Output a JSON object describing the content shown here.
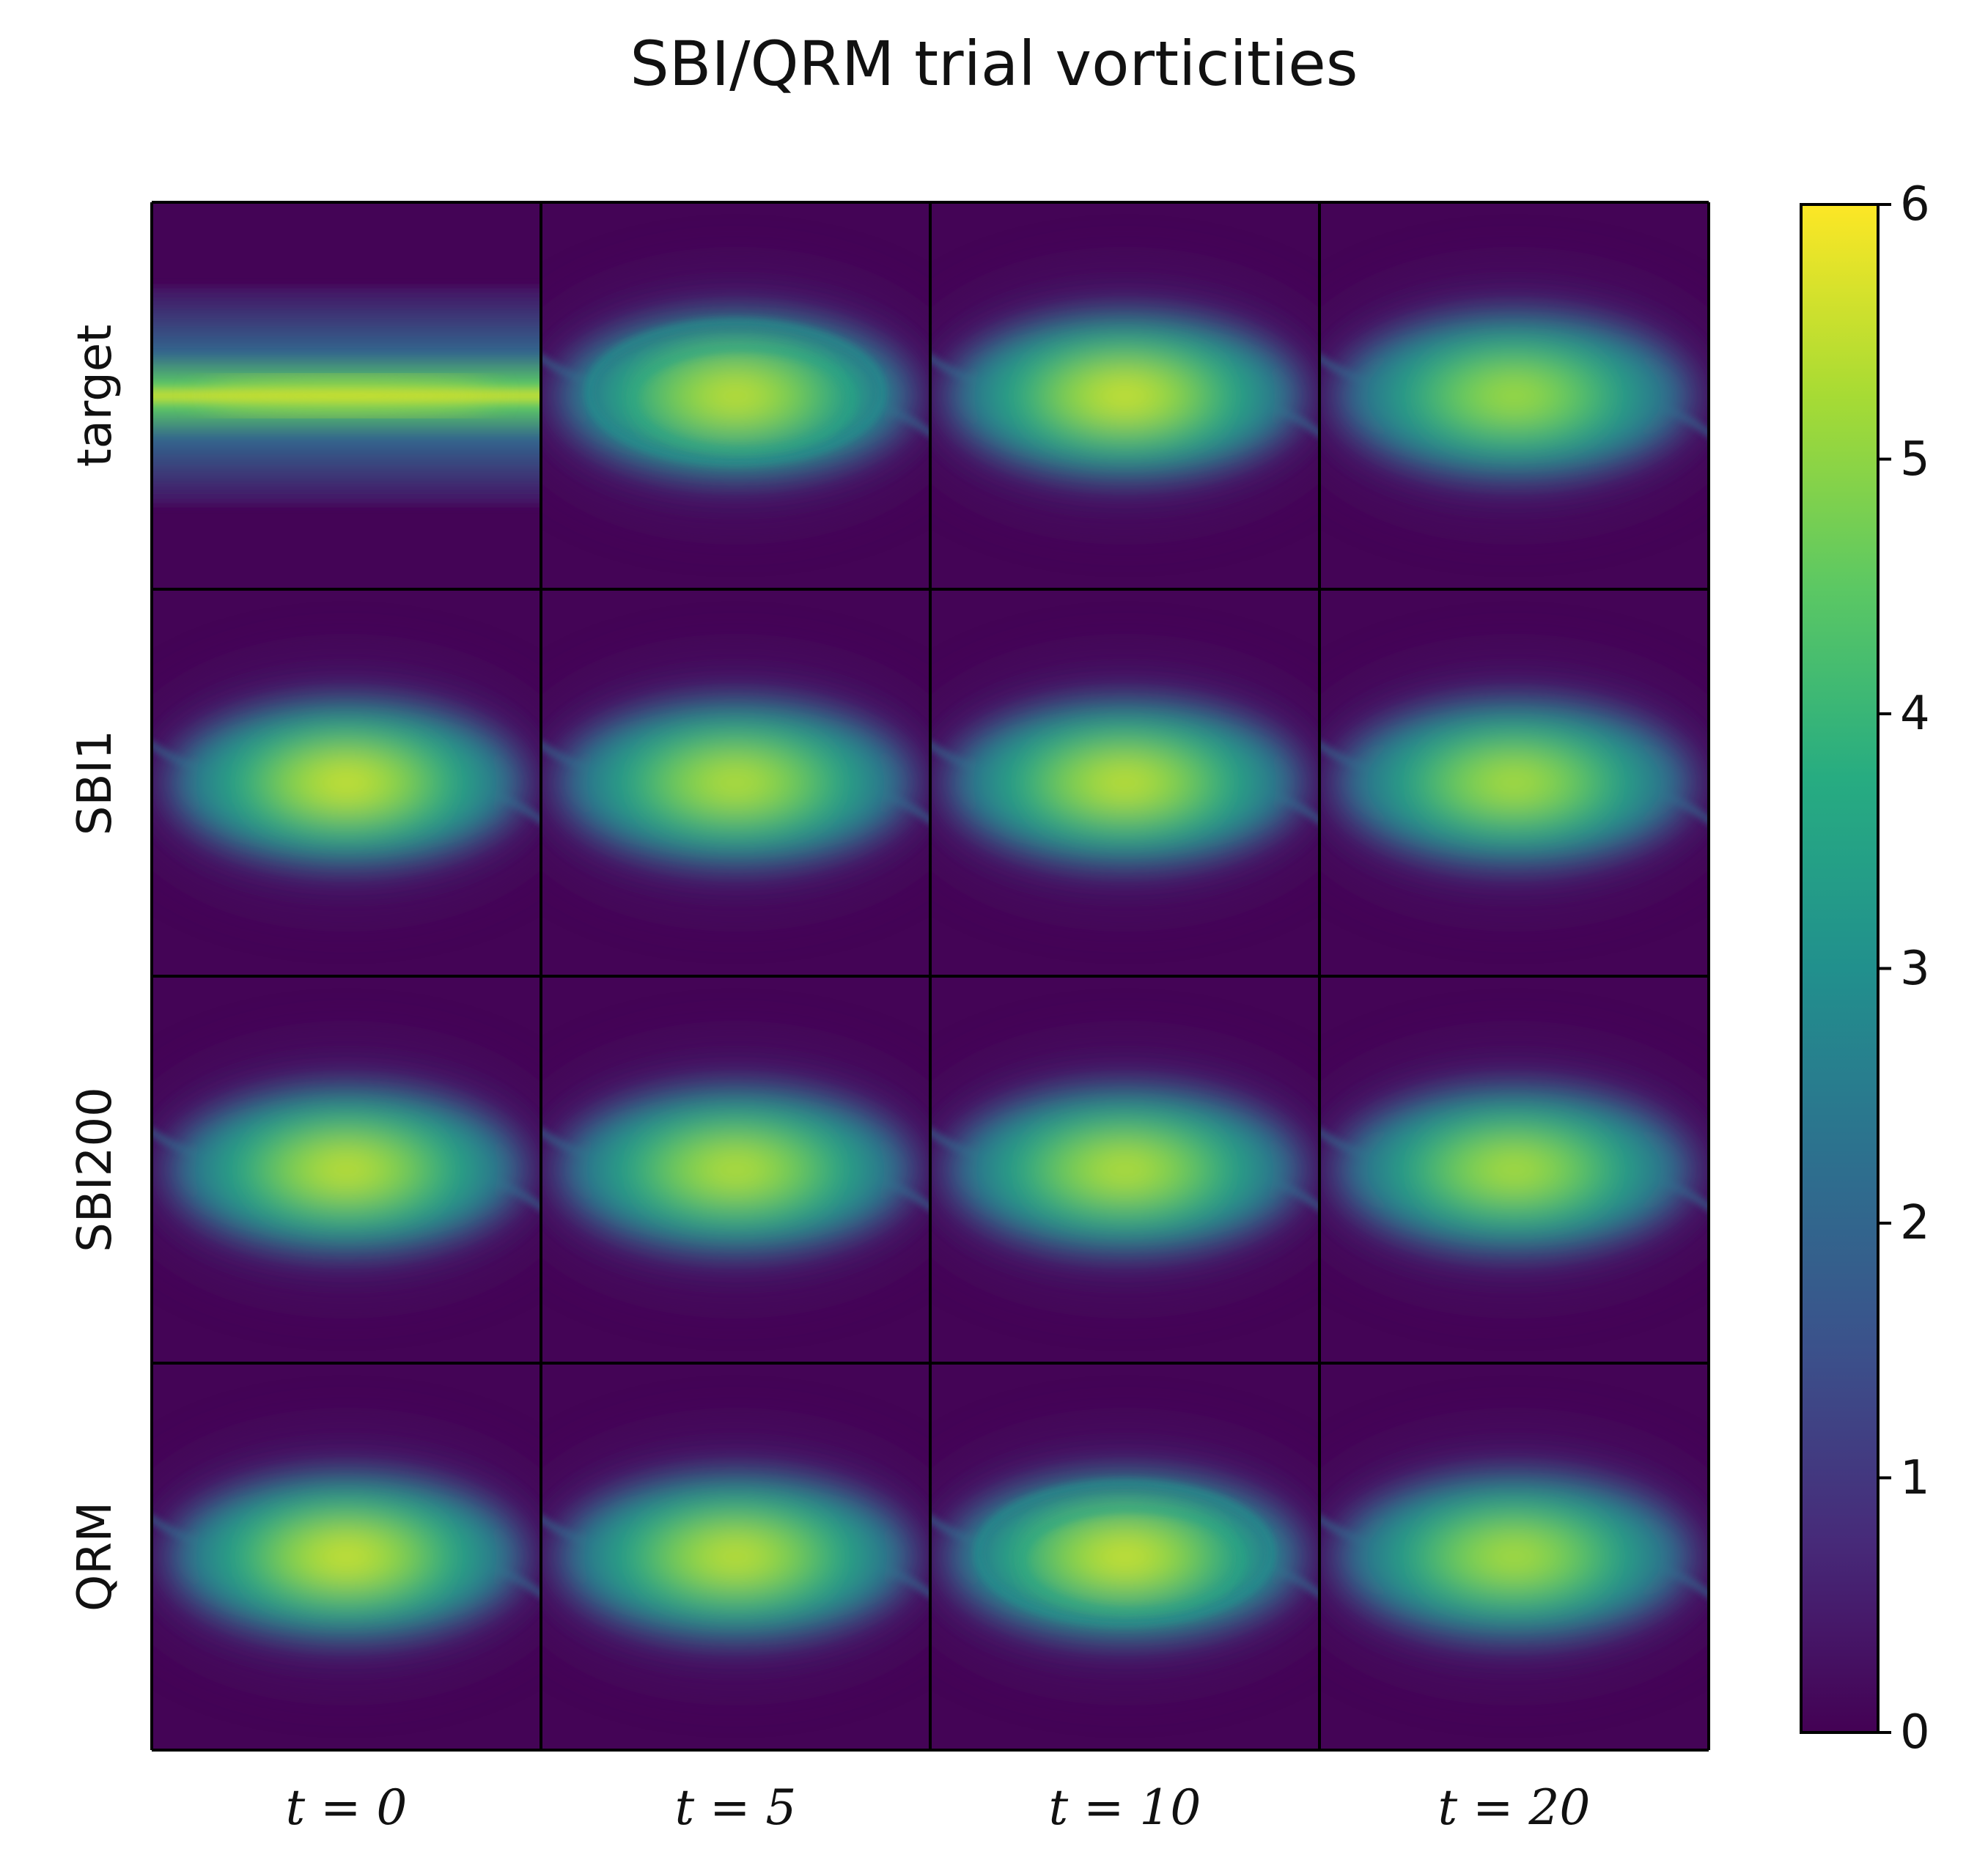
{
  "chart_data": {
    "type": "heatmap",
    "title": "SBI/QRM trial vorticities",
    "row_labels": [
      "target",
      "SBI1",
      "SBI200",
      "QRM"
    ],
    "col_labels": [
      "t = 0",
      "t = 5",
      "t = 10",
      "t = 20"
    ],
    "colormap": "viridis",
    "colorbar": {
      "range": [
        0,
        6
      ],
      "ticks": [
        "0",
        "1",
        "2",
        "3",
        "4",
        "5",
        "6"
      ]
    },
    "panels": [
      [
        {
          "kind": "band",
          "peak": 5.6
        },
        {
          "kind": "spiral",
          "peak": 5.7
        },
        {
          "kind": "vortex",
          "peak": 5.8
        },
        {
          "kind": "vortex",
          "peak": 5.4
        }
      ],
      [
        {
          "kind": "vortex",
          "peak": 5.8
        },
        {
          "kind": "vortex",
          "peak": 5.6
        },
        {
          "kind": "vortex",
          "peak": 5.7
        },
        {
          "kind": "vortex",
          "peak": 5.5
        }
      ],
      [
        {
          "kind": "vortex",
          "peak": 5.7
        },
        {
          "kind": "vortex",
          "peak": 5.6
        },
        {
          "kind": "vortex",
          "peak": 5.6
        },
        {
          "kind": "vortex",
          "peak": 5.5
        }
      ],
      [
        {
          "kind": "vortex",
          "peak": 5.8
        },
        {
          "kind": "vortex",
          "peak": 5.7
        },
        {
          "kind": "spiral",
          "peak": 5.8
        },
        {
          "kind": "vortex",
          "peak": 5.5
        }
      ]
    ]
  }
}
